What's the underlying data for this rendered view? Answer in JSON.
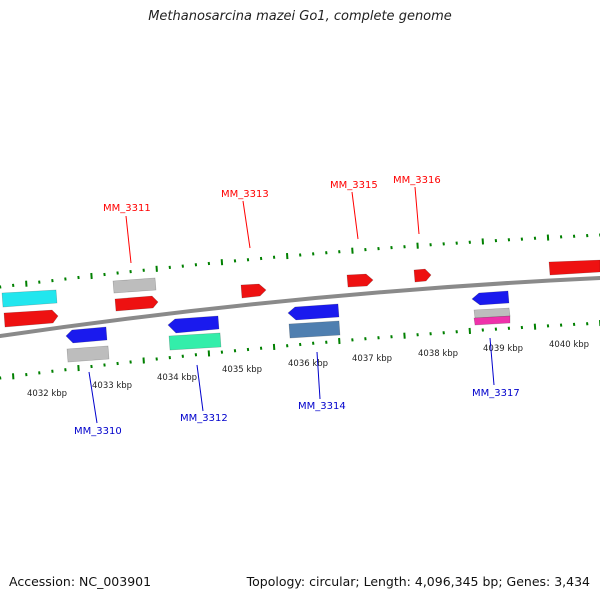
{
  "title": "Methanosarcina mazei Go1, complete genome",
  "footer": {
    "accession": "Accession: NC_003901",
    "summary": "Topology: circular; Length: 4,096,345 bp; Genes: 3,434"
  },
  "colors": {
    "backbone": "#8a8a8a",
    "tick": "#008000",
    "label_top": "#ff0000",
    "label_bottom": "#0000cc",
    "red": "#ee1111",
    "blue": "#1a1aee",
    "gray": "#bdbdbd",
    "cyan": "#22e6ee",
    "green": "#33eeaa",
    "steel": "#4f7fb0",
    "pink": "#ee33aa"
  },
  "scale_labels": [
    "4032 kbp",
    "4033 kbp",
    "4034 kbp",
    "4035 kbp",
    "4036 kbp",
    "4037 kbp",
    "4038 kbp",
    "4039 kbp",
    "4040 kbp"
  ],
  "gene_labels_top": [
    "MM_3311",
    "MM_3313",
    "MM_3315",
    "MM_3316"
  ],
  "gene_labels_bottom": [
    "MM_3310",
    "MM_3312",
    "MM_3314",
    "MM_3317"
  ]
}
